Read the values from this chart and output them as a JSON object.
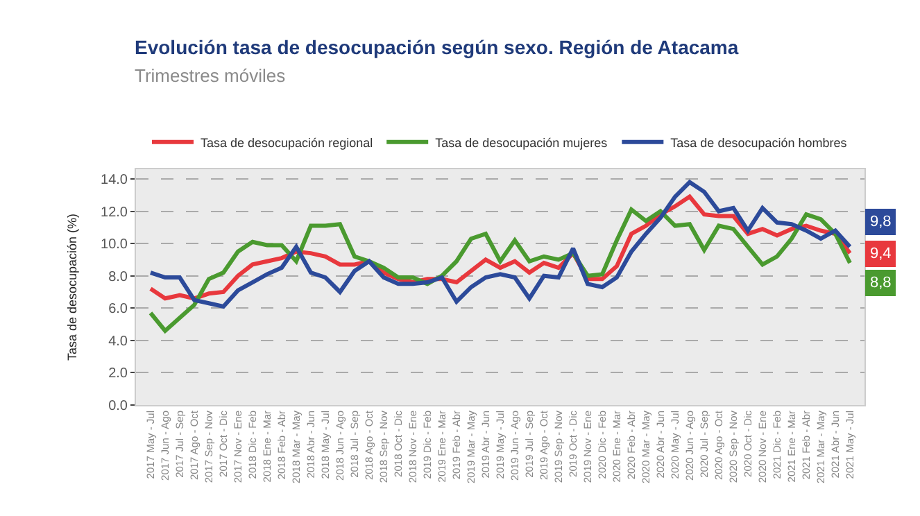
{
  "chart_data": {
    "type": "line",
    "title": "Evolución tasa de desocupación según sexo. Región de Atacama",
    "subtitle": "Trimestres móviles",
    "ylabel": "Tasa de desocupación (%)",
    "categories": [
      "2017 May - Jul",
      "2017 Jun - Ago",
      "2017 Jul - Sep",
      "2017 Ago - Oct",
      "2017 Sep - Nov",
      "2017 Oct - Dic",
      "2017 Nov - Ene",
      "2018 Dic - Feb",
      "2018 Ene - Mar",
      "2018 Feb - Abr",
      "2018 Mar - May",
      "2018 Abr - Jun",
      "2018 May - Jul",
      "2018 Jun - Ago",
      "2018 Jul - Sep",
      "2018 Ago - Oct",
      "2018 Sep - Nov",
      "2018 Oct - Dic",
      "2018 Nov - Ene",
      "2019 Dic - Feb",
      "2019 Ene - Mar",
      "2019 Feb - Abr",
      "2019 Mar - May",
      "2019 Abr - Jun",
      "2019 May - Jul",
      "2019 Jun - Ago",
      "2019 Jul - Sep",
      "2019 Ago - Oct",
      "2019 Sep - Nov",
      "2019 Oct - Dic",
      "2019 Nov - Ene",
      "2020 Dic - Feb",
      "2020 Ene - Mar",
      "2020 Feb - Abr",
      "2020 Mar - May",
      "2020 Abr - Jun",
      "2020 May - Jul",
      "2020 Jun - Ago",
      "2020 Jul - Sep",
      "2020 Ago - Oct",
      "2020 Sep - Nov",
      "2020 Oct - Dic",
      "2020 Nov - Ene",
      "2021 Dic - Feb",
      "2021 Ene - Mar",
      "2021 Feb - Abr",
      "2021 Mar - May",
      "2021 Abr - Jun",
      "2021 May - Jul"
    ],
    "series": [
      {
        "name": "Tasa de desocupación regional",
        "color": "#e8383d",
        "values": [
          7.2,
          6.6,
          6.8,
          6.6,
          6.9,
          7.0,
          8.0,
          8.7,
          8.9,
          9.1,
          9.5,
          9.4,
          9.2,
          8.7,
          8.7,
          8.9,
          8.2,
          7.8,
          7.6,
          7.8,
          7.8,
          7.6,
          8.3,
          9.0,
          8.5,
          8.9,
          8.2,
          8.8,
          8.5,
          9.4,
          7.8,
          7.8,
          8.6,
          10.6,
          11.1,
          11.8,
          12.3,
          12.9,
          11.8,
          11.7,
          11.7,
          10.6,
          10.9,
          10.5,
          10.9,
          11.1,
          10.8,
          10.6,
          9.4
        ],
        "value_labels": [
          null,
          null,
          null,
          null,
          null,
          null,
          null,
          null,
          null,
          null,
          null,
          null,
          null,
          null,
          null,
          null,
          null,
          null,
          null,
          null,
          null,
          null,
          null,
          null,
          null,
          null,
          null,
          null,
          null,
          null,
          null,
          null,
          null,
          null,
          null,
          null,
          null,
          null,
          null,
          null,
          null,
          null,
          null,
          null,
          null,
          null,
          null,
          null,
          "9,4"
        ]
      },
      {
        "name": "Tasa de desocupación mujeres",
        "color": "#4a9a2f",
        "values": [
          5.7,
          4.6,
          5.4,
          6.2,
          7.8,
          8.2,
          9.5,
          10.1,
          9.9,
          9.9,
          8.9,
          11.1,
          11.1,
          11.2,
          9.2,
          8.9,
          8.5,
          7.9,
          7.9,
          7.5,
          8.0,
          8.9,
          10.3,
          10.6,
          8.9,
          10.2,
          8.9,
          9.2,
          9.0,
          9.4,
          8.0,
          8.1,
          10.2,
          12.1,
          11.4,
          12.0,
          11.1,
          11.2,
          9.6,
          11.1,
          10.9,
          9.8,
          8.7,
          9.2,
          10.3,
          11.8,
          11.5,
          10.6,
          8.8
        ],
        "value_labels": [
          null,
          null,
          null,
          null,
          null,
          null,
          null,
          null,
          null,
          null,
          null,
          null,
          null,
          null,
          null,
          null,
          null,
          null,
          null,
          null,
          null,
          null,
          null,
          null,
          null,
          null,
          null,
          null,
          null,
          null,
          null,
          null,
          null,
          null,
          null,
          null,
          null,
          null,
          null,
          null,
          null,
          null,
          null,
          null,
          null,
          null,
          null,
          null,
          "8,8"
        ]
      },
      {
        "name": "Tasa de desocupación hombres",
        "color": "#2c4a9a",
        "values": [
          8.2,
          7.9,
          7.9,
          6.5,
          6.3,
          6.1,
          7.1,
          7.6,
          8.1,
          8.5,
          9.8,
          8.2,
          7.9,
          7.0,
          8.3,
          8.9,
          7.9,
          7.5,
          7.5,
          7.6,
          7.9,
          6.4,
          7.3,
          7.9,
          8.1,
          7.9,
          6.6,
          8.0,
          7.9,
          9.7,
          7.5,
          7.3,
          7.9,
          9.5,
          10.6,
          11.6,
          12.9,
          13.8,
          13.2,
          12.0,
          12.2,
          10.8,
          12.2,
          11.3,
          11.2,
          10.8,
          10.3,
          10.8,
          9.8
        ],
        "value_labels": [
          null,
          null,
          null,
          null,
          null,
          null,
          null,
          null,
          null,
          null,
          null,
          null,
          null,
          null,
          null,
          null,
          null,
          null,
          null,
          null,
          null,
          null,
          null,
          null,
          null,
          null,
          null,
          null,
          null,
          null,
          null,
          null,
          null,
          null,
          null,
          null,
          null,
          null,
          null,
          null,
          null,
          null,
          null,
          null,
          null,
          null,
          null,
          null,
          "9,8"
        ]
      }
    ],
    "ylim": [
      0,
      14.6
    ],
    "yticks": [
      {
        "value": 0,
        "label": "0.0"
      },
      {
        "value": 2,
        "label": "2.0"
      },
      {
        "value": 4,
        "label": "4.0"
      },
      {
        "value": 6,
        "label": "6.0"
      },
      {
        "value": 8,
        "label": "8.0"
      },
      {
        "value": 10,
        "label": "10.0"
      },
      {
        "value": 12,
        "label": "12.0"
      },
      {
        "value": 14,
        "label": "14.0"
      }
    ],
    "grid": "y",
    "legend": "top",
    "marker": "none",
    "line_style": "solid"
  }
}
